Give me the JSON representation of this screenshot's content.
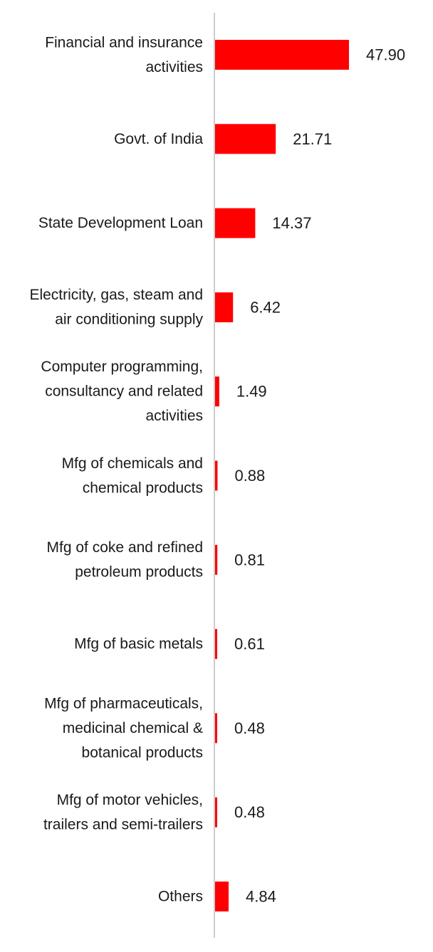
{
  "chart_data": {
    "type": "bar",
    "orientation": "horizontal",
    "title": "",
    "xlabel": "",
    "ylabel": "",
    "grid": false,
    "legend": "none",
    "bar_color": "#ff0000",
    "axis_color": "#cccccc",
    "xlim": [
      0,
      47.9
    ],
    "categories": [
      "Financial and insurance activities",
      "Govt. of India",
      "State Development Loan",
      "Electricity, gas, steam and air conditioning supply",
      "Computer programming, consultancy and related activities",
      "Mfg of chemicals and chemical products",
      "Mfg of coke and refined petroleum products",
      "Mfg of basic metals",
      "Mfg of pharmaceuticals, medicinal chemical & botanical products",
      "Mfg of motor vehicles, trailers and semi-trailers",
      "Others"
    ],
    "category_label_lines": [
      [
        "Financial and insurance",
        "activities"
      ],
      [
        "Govt. of India"
      ],
      [
        "State Development Loan"
      ],
      [
        "Electricity, gas, steam and",
        "air conditioning supply"
      ],
      [
        "Computer programming,",
        "consultancy and related",
        "activities"
      ],
      [
        "Mfg of chemicals and",
        "chemical products"
      ],
      [
        "Mfg of coke and refined",
        "petroleum products"
      ],
      [
        "Mfg of basic metals"
      ],
      [
        "Mfg of pharmaceuticals,",
        "medicinal chemical &",
        "botanical products"
      ],
      [
        "Mfg of motor vehicles,",
        "trailers and semi-trailers"
      ],
      [
        "Others"
      ]
    ],
    "values": [
      47.9,
      21.71,
      14.37,
      6.42,
      1.49,
      0.88,
      0.81,
      0.61,
      0.48,
      0.48,
      4.84
    ],
    "value_labels": [
      "47.90",
      "21.71",
      "14.37",
      "6.42",
      "1.49",
      "0.88",
      "0.81",
      "0.61",
      "0.48",
      "0.48",
      "4.84"
    ]
  }
}
